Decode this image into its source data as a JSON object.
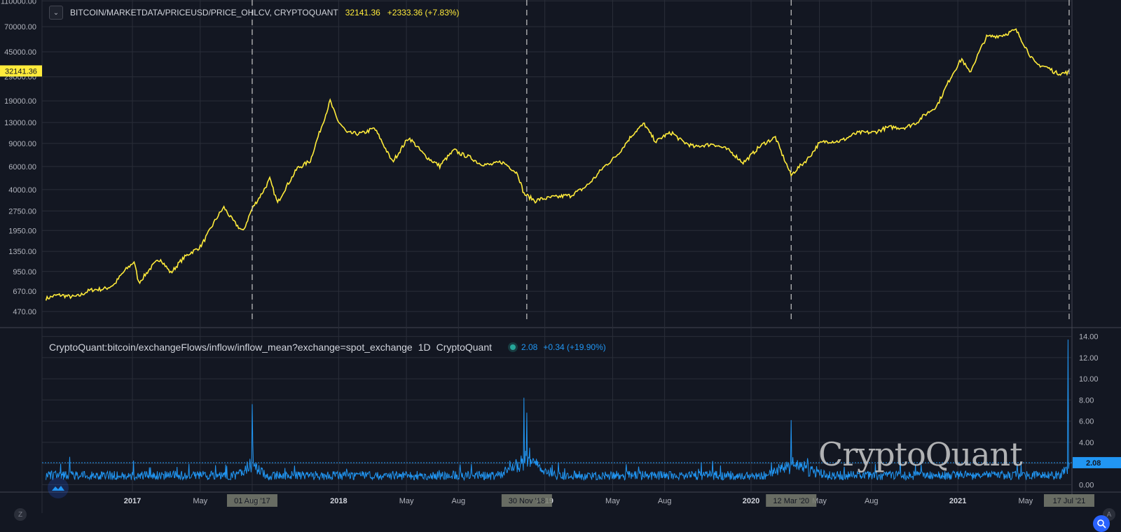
{
  "top_legend": {
    "symbol": "BITCOIN/MARKETDATA/PRICEUSD/PRICE_OHLCV, CRYPTOQUANT",
    "last": "32141.36",
    "change": "+2333.36 (+7.83%)"
  },
  "bottom_legend": {
    "symbol": "CryptoQuant:bitcoin/exchangeFlows/inflow/inflow_mean?exchange=spot_exchange",
    "interval": "1D",
    "source": "CryptoQuant",
    "value": "2.08",
    "change": "+0.34 (+19.90%)"
  },
  "watermark": "CryptoQuant",
  "buttons": {
    "zoom": "Z",
    "auto": "A"
  },
  "colors": {
    "background": "#131722",
    "price": "#ffeb3b",
    "inflow": "#2196f3",
    "grid": "#2a2e39"
  },
  "chart_data": [
    {
      "type": "line",
      "title": "BITCOIN/MARKETDATA/PRICEUSD/PRICE_OHLCV, CRYPTOQUANT",
      "scale": "log",
      "y_ticks": [
        "110000.00",
        "70000.00",
        "45000.00",
        "29000.00",
        "19000.00",
        "13000.00",
        "9000.00",
        "6000.00",
        "4000.00",
        "2750.00",
        "1950.00",
        "1350.00",
        "950.00",
        "670.00",
        "470.00"
      ],
      "last_value_label": "32141.36",
      "x_ticks": [
        "2017",
        "May",
        "Aug",
        "2018",
        "May",
        "Aug",
        "2019",
        "May",
        "Aug",
        "2020",
        "May",
        "Aug",
        "2021",
        "May"
      ],
      "series": [
        {
          "color": "#ffeb3b",
          "x": [
            "2016-08-01",
            "2016-10-01",
            "2016-12-01",
            "2017-01-04",
            "2017-01-12",
            "2017-02-20",
            "2017-03-10",
            "2017-03-25",
            "2017-05-01",
            "2017-06-12",
            "2017-07-16",
            "2017-08-01",
            "2017-09-01",
            "2017-09-15",
            "2017-10-20",
            "2017-11-12",
            "2017-12-17",
            "2017-12-30",
            "2018-01-16",
            "2018-03-05",
            "2018-04-06",
            "2018-05-05",
            "2018-06-29",
            "2018-07-25",
            "2018-09-05",
            "2018-10-15",
            "2018-11-14",
            "2018-11-25",
            "2018-12-15",
            "2019-01-15",
            "2019-02-15",
            "2019-04-02",
            "2019-05-14",
            "2019-06-26",
            "2019-07-17",
            "2019-08-15",
            "2019-09-24",
            "2019-10-26",
            "2019-12-18",
            "2020-02-13",
            "2020-03-12",
            "2020-04-29",
            "2020-06-01",
            "2020-07-27",
            "2020-09-01",
            "2020-10-21",
            "2020-11-25",
            "2021-01-08",
            "2021-01-22",
            "2021-02-21",
            "2021-03-13",
            "2021-04-14",
            "2021-05-19",
            "2021-06-22",
            "2021-07-17"
          ],
          "y": [
            600,
            630,
            760,
            1150,
            800,
            1180,
            950,
            1100,
            1500,
            2900,
            1900,
            2800,
            4900,
            3100,
            6000,
            6500,
            19500,
            13500,
            10500,
            11500,
            6700,
            9700,
            5900,
            8200,
            6300,
            6400,
            5400,
            3800,
            3200,
            3600,
            3500,
            5000,
            8000,
            12900,
            9300,
            10800,
            8200,
            9200,
            6600,
            10300,
            5000,
            8800,
            9500,
            11100,
            11600,
            12800,
            18000,
            40000,
            32000,
            57000,
            61000,
            64000,
            37000,
            31000,
            32141.36
          ]
        }
      ]
    },
    {
      "type": "line",
      "title": "CryptoQuant:bitcoin/exchangeFlows/inflow/inflow_mean?exchange=spot_exchange",
      "y_ticks": [
        "14.00",
        "12.00",
        "10.00",
        "8.00",
        "6.00",
        "4.00",
        "2.00",
        "0.00"
      ],
      "ylim": [
        -0.7,
        14.7
      ],
      "last_value_label": "2.08",
      "marker_labels": [
        "01 Aug '17",
        "30 Nov '18",
        "12 Mar '20",
        "17 Jul '21"
      ],
      "series": [
        {
          "color": "#2196f3",
          "baseline": 1.0,
          "x": [
            "2017-08-01",
            "2017-08-02",
            "2018-11-25",
            "2018-11-30",
            "2020-03-12",
            "2021-07-15",
            "2021-07-17"
          ],
          "y": [
            7.6,
            4.0,
            8.2,
            6.8,
            6.1,
            13.7,
            2.08
          ]
        }
      ]
    }
  ]
}
